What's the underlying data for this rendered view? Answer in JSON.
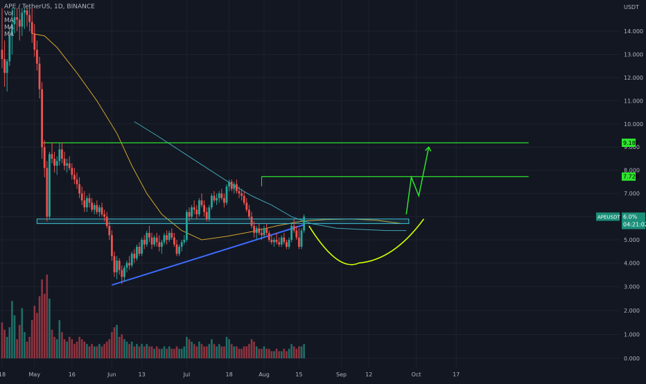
{
  "header": {
    "title": "APE / TetherUS, 1D, BINANCE",
    "indicators": [
      "Vol",
      "MA",
      "MA",
      "MA"
    ]
  },
  "axis": {
    "currency": "USDT",
    "price_ticks": [
      {
        "label": "14.000",
        "value": 14
      },
      {
        "label": "13.000",
        "value": 13
      },
      {
        "label": "12.000",
        "value": 12
      },
      {
        "label": "11.000",
        "value": 11
      },
      {
        "label": "10.000",
        "value": 10
      },
      {
        "label": "9.000",
        "value": 9
      },
      {
        "label": "8.000",
        "value": 8
      },
      {
        "label": "7.000",
        "value": 7
      },
      {
        "label": "6.000",
        "value": 6
      },
      {
        "label": "5.000",
        "value": 5
      },
      {
        "label": "4.000",
        "value": 4
      },
      {
        "label": "3.000",
        "value": 3
      },
      {
        "label": "2.000",
        "value": 2
      },
      {
        "label": "1.000",
        "value": 1
      },
      {
        "label": "0.000",
        "value": 0
      }
    ],
    "date_ticks": [
      {
        "label": "18",
        "day": 0
      },
      {
        "label": "May",
        "day": 13
      },
      {
        "label": "16",
        "day": 28
      },
      {
        "label": "Jun",
        "day": 44
      },
      {
        "label": "13",
        "day": 56
      },
      {
        "label": "Jul",
        "day": 74
      },
      {
        "label": "18",
        "day": 91
      },
      {
        "label": "Aug",
        "day": 105
      },
      {
        "label": "15",
        "day": 119
      },
      {
        "label": "Sep",
        "day": 136
      },
      {
        "label": "12",
        "day": 147
      },
      {
        "label": "Oct",
        "day": 166
      },
      {
        "label": "17",
        "day": 182
      }
    ]
  },
  "levels": {
    "target1": {
      "label": "9.187",
      "value": 9.187
    },
    "target2": {
      "label": "7.729",
      "value": 7.729
    },
    "current": {
      "symbol": "APEUSDT",
      "change": "6.0%",
      "countdown": "04:21:02",
      "value": 6.0
    }
  },
  "colors": {
    "up": "#26a69a",
    "down": "#ef5350",
    "vol_up": "#1f6f68",
    "vol_down": "#8f3440",
    "ma_orange": "#d4a52e",
    "ma_teal": "#3fa7b6",
    "level_green": "#2ee62e",
    "support_box": "#3fc2d6",
    "trend_blue": "#3d6cff",
    "cup_yellow": "#d4ff00",
    "arrow_green": "#2ee62e",
    "label_bg_green": "#2ee62e",
    "label_bg_current": "#1b8f7a"
  },
  "chart_data": {
    "type": "candlestick",
    "symbol": "APE / TetherUS",
    "interval": "1D",
    "exchange": "BINANCE",
    "y_axis_unit": "USDT",
    "ylim": [
      0,
      15
    ],
    "candles": [
      [
        13.2,
        15.0,
        12.4,
        12.8
      ],
      [
        12.8,
        13.6,
        11.6,
        12.2
      ],
      [
        12.2,
        12.8,
        11.4,
        12.7
      ],
      [
        12.7,
        14.2,
        12.5,
        13.8
      ],
      [
        13.8,
        15.0,
        13.0,
        14.3
      ],
      [
        14.3,
        15.0,
        13.9,
        14.6
      ],
      [
        14.6,
        15.0,
        14.0,
        14.5
      ],
      [
        14.5,
        15.0,
        13.6,
        14.2
      ],
      [
        14.2,
        15.0,
        13.8,
        14.8
      ],
      [
        14.8,
        15.0,
        14.1,
        14.9
      ],
      [
        14.9,
        15.0,
        14.2,
        14.7
      ],
      [
        14.7,
        15.0,
        14.0,
        14.4
      ],
      [
        14.4,
        15.0,
        13.5,
        13.9
      ],
      [
        13.9,
        14.3,
        12.9,
        13.2
      ],
      [
        13.2,
        13.6,
        12.3,
        12.6
      ],
      [
        12.6,
        12.9,
        11.1,
        11.5
      ],
      [
        11.5,
        11.8,
        8.5,
        9.0
      ],
      [
        9.0,
        9.3,
        7.7,
        8.1
      ],
      [
        8.1,
        8.4,
        5.8,
        6.0
      ],
      [
        6.0,
        8.8,
        5.9,
        8.7
      ],
      [
        8.7,
        9.2,
        8.3,
        8.5
      ],
      [
        8.5,
        8.8,
        7.9,
        8.2
      ],
      [
        8.2,
        8.6,
        7.8,
        8.4
      ],
      [
        8.4,
        9.2,
        8.2,
        8.9
      ],
      [
        8.9,
        9.2,
        8.3,
        8.5
      ],
      [
        8.5,
        8.8,
        8.0,
        8.2
      ],
      [
        8.2,
        8.5,
        7.9,
        8.3
      ],
      [
        8.3,
        8.6,
        8.0,
        8.1
      ],
      [
        8.1,
        8.3,
        7.6,
        7.8
      ],
      [
        7.8,
        8.1,
        7.4,
        7.6
      ],
      [
        7.6,
        7.9,
        7.2,
        7.4
      ],
      [
        7.4,
        7.7,
        6.8,
        7.0
      ],
      [
        7.0,
        7.3,
        6.5,
        6.7
      ],
      [
        6.7,
        7.1,
        6.2,
        6.4
      ],
      [
        6.4,
        6.9,
        6.2,
        6.8
      ],
      [
        6.8,
        7.0,
        6.4,
        6.6
      ],
      [
        6.6,
        6.8,
        6.2,
        6.3
      ],
      [
        6.3,
        6.6,
        6.1,
        6.5
      ],
      [
        6.5,
        6.7,
        6.1,
        6.2
      ],
      [
        6.2,
        6.5,
        6.0,
        6.4
      ],
      [
        6.4,
        6.6,
        6.0,
        6.1
      ],
      [
        6.1,
        6.3,
        5.8,
        6.0
      ],
      [
        6.0,
        6.2,
        5.5,
        5.6
      ],
      [
        5.6,
        5.8,
        5.0,
        5.2
      ],
      [
        5.2,
        5.4,
        4.1,
        4.3
      ],
      [
        4.3,
        4.5,
        3.4,
        3.6
      ],
      [
        3.6,
        4.3,
        3.3,
        4.1
      ],
      [
        4.1,
        4.2,
        3.5,
        3.7
      ],
      [
        3.7,
        3.9,
        3.1,
        3.4
      ],
      [
        3.4,
        3.9,
        3.2,
        3.8
      ],
      [
        3.8,
        4.1,
        3.6,
        4.0
      ],
      [
        4.0,
        4.3,
        3.7,
        3.9
      ],
      [
        3.9,
        4.5,
        3.8,
        4.4
      ],
      [
        4.4,
        4.6,
        4.0,
        4.2
      ],
      [
        4.2,
        4.8,
        4.1,
        4.7
      ],
      [
        4.7,
        4.9,
        4.3,
        4.4
      ],
      [
        4.4,
        5.1,
        4.3,
        5.0
      ],
      [
        5.0,
        5.2,
        4.6,
        4.8
      ],
      [
        4.8,
        5.4,
        4.7,
        5.3
      ],
      [
        5.3,
        5.6,
        4.9,
        5.1
      ],
      [
        5.1,
        5.3,
        4.6,
        4.8
      ],
      [
        4.8,
        5.2,
        4.7,
        5.1
      ],
      [
        5.1,
        5.3,
        4.7,
        4.9
      ],
      [
        4.9,
        5.2,
        4.5,
        4.7
      ],
      [
        4.7,
        5.0,
        4.4,
        4.9
      ],
      [
        4.9,
        5.3,
        4.8,
        5.2
      ],
      [
        5.2,
        5.4,
        4.8,
        5.0
      ],
      [
        5.0,
        5.4,
        4.9,
        5.3
      ],
      [
        5.3,
        5.5,
        5.0,
        5.1
      ],
      [
        5.1,
        5.3,
        4.7,
        4.8
      ],
      [
        4.8,
        5.0,
        4.3,
        4.4
      ],
      [
        4.4,
        4.8,
        4.3,
        4.7
      ],
      [
        4.7,
        5.0,
        4.5,
        4.9
      ],
      [
        4.9,
        5.2,
        4.8,
        5.0
      ],
      [
        5.0,
        6.3,
        4.9,
        6.2
      ],
      [
        6.2,
        6.4,
        5.8,
        6.0
      ],
      [
        6.0,
        6.5,
        5.9,
        6.4
      ],
      [
        6.4,
        6.7,
        6.1,
        6.3
      ],
      [
        6.3,
        6.5,
        5.9,
        6.1
      ],
      [
        6.1,
        6.8,
        6.0,
        6.7
      ],
      [
        6.7,
        7.0,
        6.4,
        6.5
      ],
      [
        6.5,
        6.7,
        6.0,
        6.2
      ],
      [
        6.2,
        6.4,
        5.8,
        5.9
      ],
      [
        5.9,
        6.5,
        5.8,
        6.4
      ],
      [
        6.4,
        7.0,
        6.3,
        6.9
      ],
      [
        6.9,
        7.1,
        6.6,
        6.7
      ],
      [
        6.7,
        7.0,
        6.5,
        6.8
      ],
      [
        6.8,
        7.1,
        6.6,
        7.0
      ],
      [
        7.0,
        7.2,
        6.7,
        6.8
      ],
      [
        6.8,
        7.0,
        6.4,
        6.6
      ],
      [
        6.6,
        7.4,
        6.5,
        7.3
      ],
      [
        7.3,
        7.6,
        7.1,
        7.5
      ],
      [
        7.5,
        7.6,
        7.1,
        7.2
      ],
      [
        7.2,
        7.5,
        7.0,
        7.4
      ],
      [
        7.4,
        7.6,
        7.0,
        7.1
      ],
      [
        7.1,
        7.3,
        6.8,
        7.0
      ],
      [
        7.0,
        7.2,
        6.7,
        6.9
      ],
      [
        6.9,
        7.1,
        6.5,
        6.6
      ],
      [
        6.6,
        6.8,
        6.2,
        6.3
      ],
      [
        6.3,
        6.5,
        5.9,
        6.0
      ],
      [
        6.0,
        6.2,
        5.5,
        5.6
      ],
      [
        5.6,
        5.8,
        5.1,
        5.3
      ],
      [
        5.3,
        5.6,
        5.0,
        5.5
      ],
      [
        5.5,
        5.7,
        5.2,
        5.3
      ],
      [
        5.3,
        5.5,
        5.0,
        5.2
      ],
      [
        5.2,
        5.6,
        5.1,
        5.5
      ],
      [
        5.5,
        5.7,
        5.2,
        5.3
      ],
      [
        5.3,
        5.4,
        4.9,
        5.0
      ],
      [
        5.0,
        5.2,
        4.8,
        4.9
      ],
      [
        4.9,
        5.1,
        4.7,
        5.0
      ],
      [
        5.0,
        5.3,
        4.8,
        4.9
      ],
      [
        4.9,
        5.1,
        4.7,
        4.8
      ],
      [
        4.8,
        5.2,
        4.7,
        5.1
      ],
      [
        5.1,
        5.3,
        4.8,
        4.9
      ],
      [
        4.9,
        5.0,
        4.6,
        4.7
      ],
      [
        4.7,
        5.1,
        4.6,
        5.0
      ],
      [
        5.0,
        5.7,
        4.9,
        5.6
      ],
      [
        5.6,
        5.9,
        5.3,
        5.4
      ],
      [
        5.4,
        5.6,
        5.0,
        5.1
      ],
      [
        5.1,
        5.5,
        4.6,
        4.7
      ],
      [
        4.7,
        5.5,
        4.6,
        5.4
      ],
      [
        5.4,
        6.1,
        5.3,
        6.0
      ]
    ],
    "volume": [
      1.5,
      1.2,
      0.9,
      1.3,
      2.4,
      1.8,
      0.8,
      1.4,
      2.1,
      1.1,
      0.7,
      0.9,
      1.6,
      2.2,
      1.9,
      2.6,
      3.3,
      2.7,
      3.5,
      2.5,
      1.2,
      0.9,
      0.8,
      1.6,
      1.1,
      0.8,
      0.7,
      0.9,
      0.8,
      0.6,
      0.7,
      0.9,
      0.8,
      0.7,
      0.6,
      0.5,
      0.6,
      0.5,
      0.5,
      0.6,
      0.5,
      0.6,
      0.7,
      0.8,
      1.1,
      1.3,
      1.4,
      0.9,
      1.0,
      0.8,
      0.7,
      0.6,
      0.7,
      0.5,
      0.6,
      0.5,
      0.6,
      0.5,
      0.6,
      0.5,
      0.5,
      0.4,
      0.5,
      0.4,
      0.4,
      0.5,
      0.4,
      0.5,
      0.4,
      0.4,
      0.5,
      0.4,
      0.4,
      0.5,
      0.9,
      0.8,
      0.7,
      0.6,
      0.5,
      0.7,
      0.6,
      0.5,
      0.5,
      0.6,
      0.8,
      0.6,
      0.5,
      0.6,
      0.5,
      0.5,
      0.9,
      0.8,
      0.6,
      0.5,
      0.5,
      0.4,
      0.4,
      0.5,
      0.5,
      0.6,
      0.8,
      0.7,
      0.5,
      0.4,
      0.4,
      0.5,
      0.4,
      0.4,
      0.3,
      0.3,
      0.4,
      0.3,
      0.3,
      0.4,
      0.3,
      0.4,
      0.6,
      0.5,
      0.4,
      0.5,
      0.5,
      0.6
    ],
    "ma_orange": [
      [
        12,
        13.9
      ],
      [
        17,
        13.8
      ],
      [
        22,
        13.3
      ],
      [
        30,
        12.2
      ],
      [
        38,
        11.0
      ],
      [
        46,
        9.6
      ],
      [
        52,
        8.2
      ],
      [
        58,
        7.0
      ],
      [
        64,
        6.1
      ],
      [
        72,
        5.4
      ],
      [
        80,
        5.0
      ],
      [
        90,
        5.15
      ],
      [
        100,
        5.35
      ],
      [
        110,
        5.6
      ],
      [
        120,
        5.8
      ],
      [
        130,
        5.88
      ],
      [
        140,
        5.9
      ],
      [
        150,
        5.85
      ],
      [
        160,
        5.7
      ]
    ],
    "ma_teal": [
      [
        53,
        10.1
      ],
      [
        62,
        9.5
      ],
      [
        72,
        8.8
      ],
      [
        82,
        8.1
      ],
      [
        92,
        7.4
      ],
      [
        100,
        6.9
      ],
      [
        108,
        6.5
      ],
      [
        116,
        6.0
      ],
      [
        124,
        5.7
      ],
      [
        134,
        5.5
      ],
      [
        144,
        5.45
      ],
      [
        154,
        5.4
      ],
      [
        162,
        5.4
      ]
    ],
    "resistance_1": {
      "value": 9.187,
      "from_day": 16,
      "to_day": 211
    },
    "resistance_2": {
      "value": 7.729,
      "from_day": 104,
      "to_day": 211
    },
    "support_zone": {
      "low": 5.7,
      "high": 5.9,
      "from_day": 14,
      "to_day": 163
    },
    "trendline": {
      "from": [
        44,
        3.05
      ],
      "to": [
        121,
        5.65
      ]
    },
    "cup": {
      "from": [
        123,
        5.6
      ],
      "bottom": [
        143,
        4.0
      ],
      "to": [
        169,
        5.9
      ]
    },
    "projection_arrow": [
      [
        162,
        6.1
      ],
      [
        164,
        7.7
      ],
      [
        167,
        6.9
      ],
      [
        171,
        9.0
      ]
    ]
  }
}
